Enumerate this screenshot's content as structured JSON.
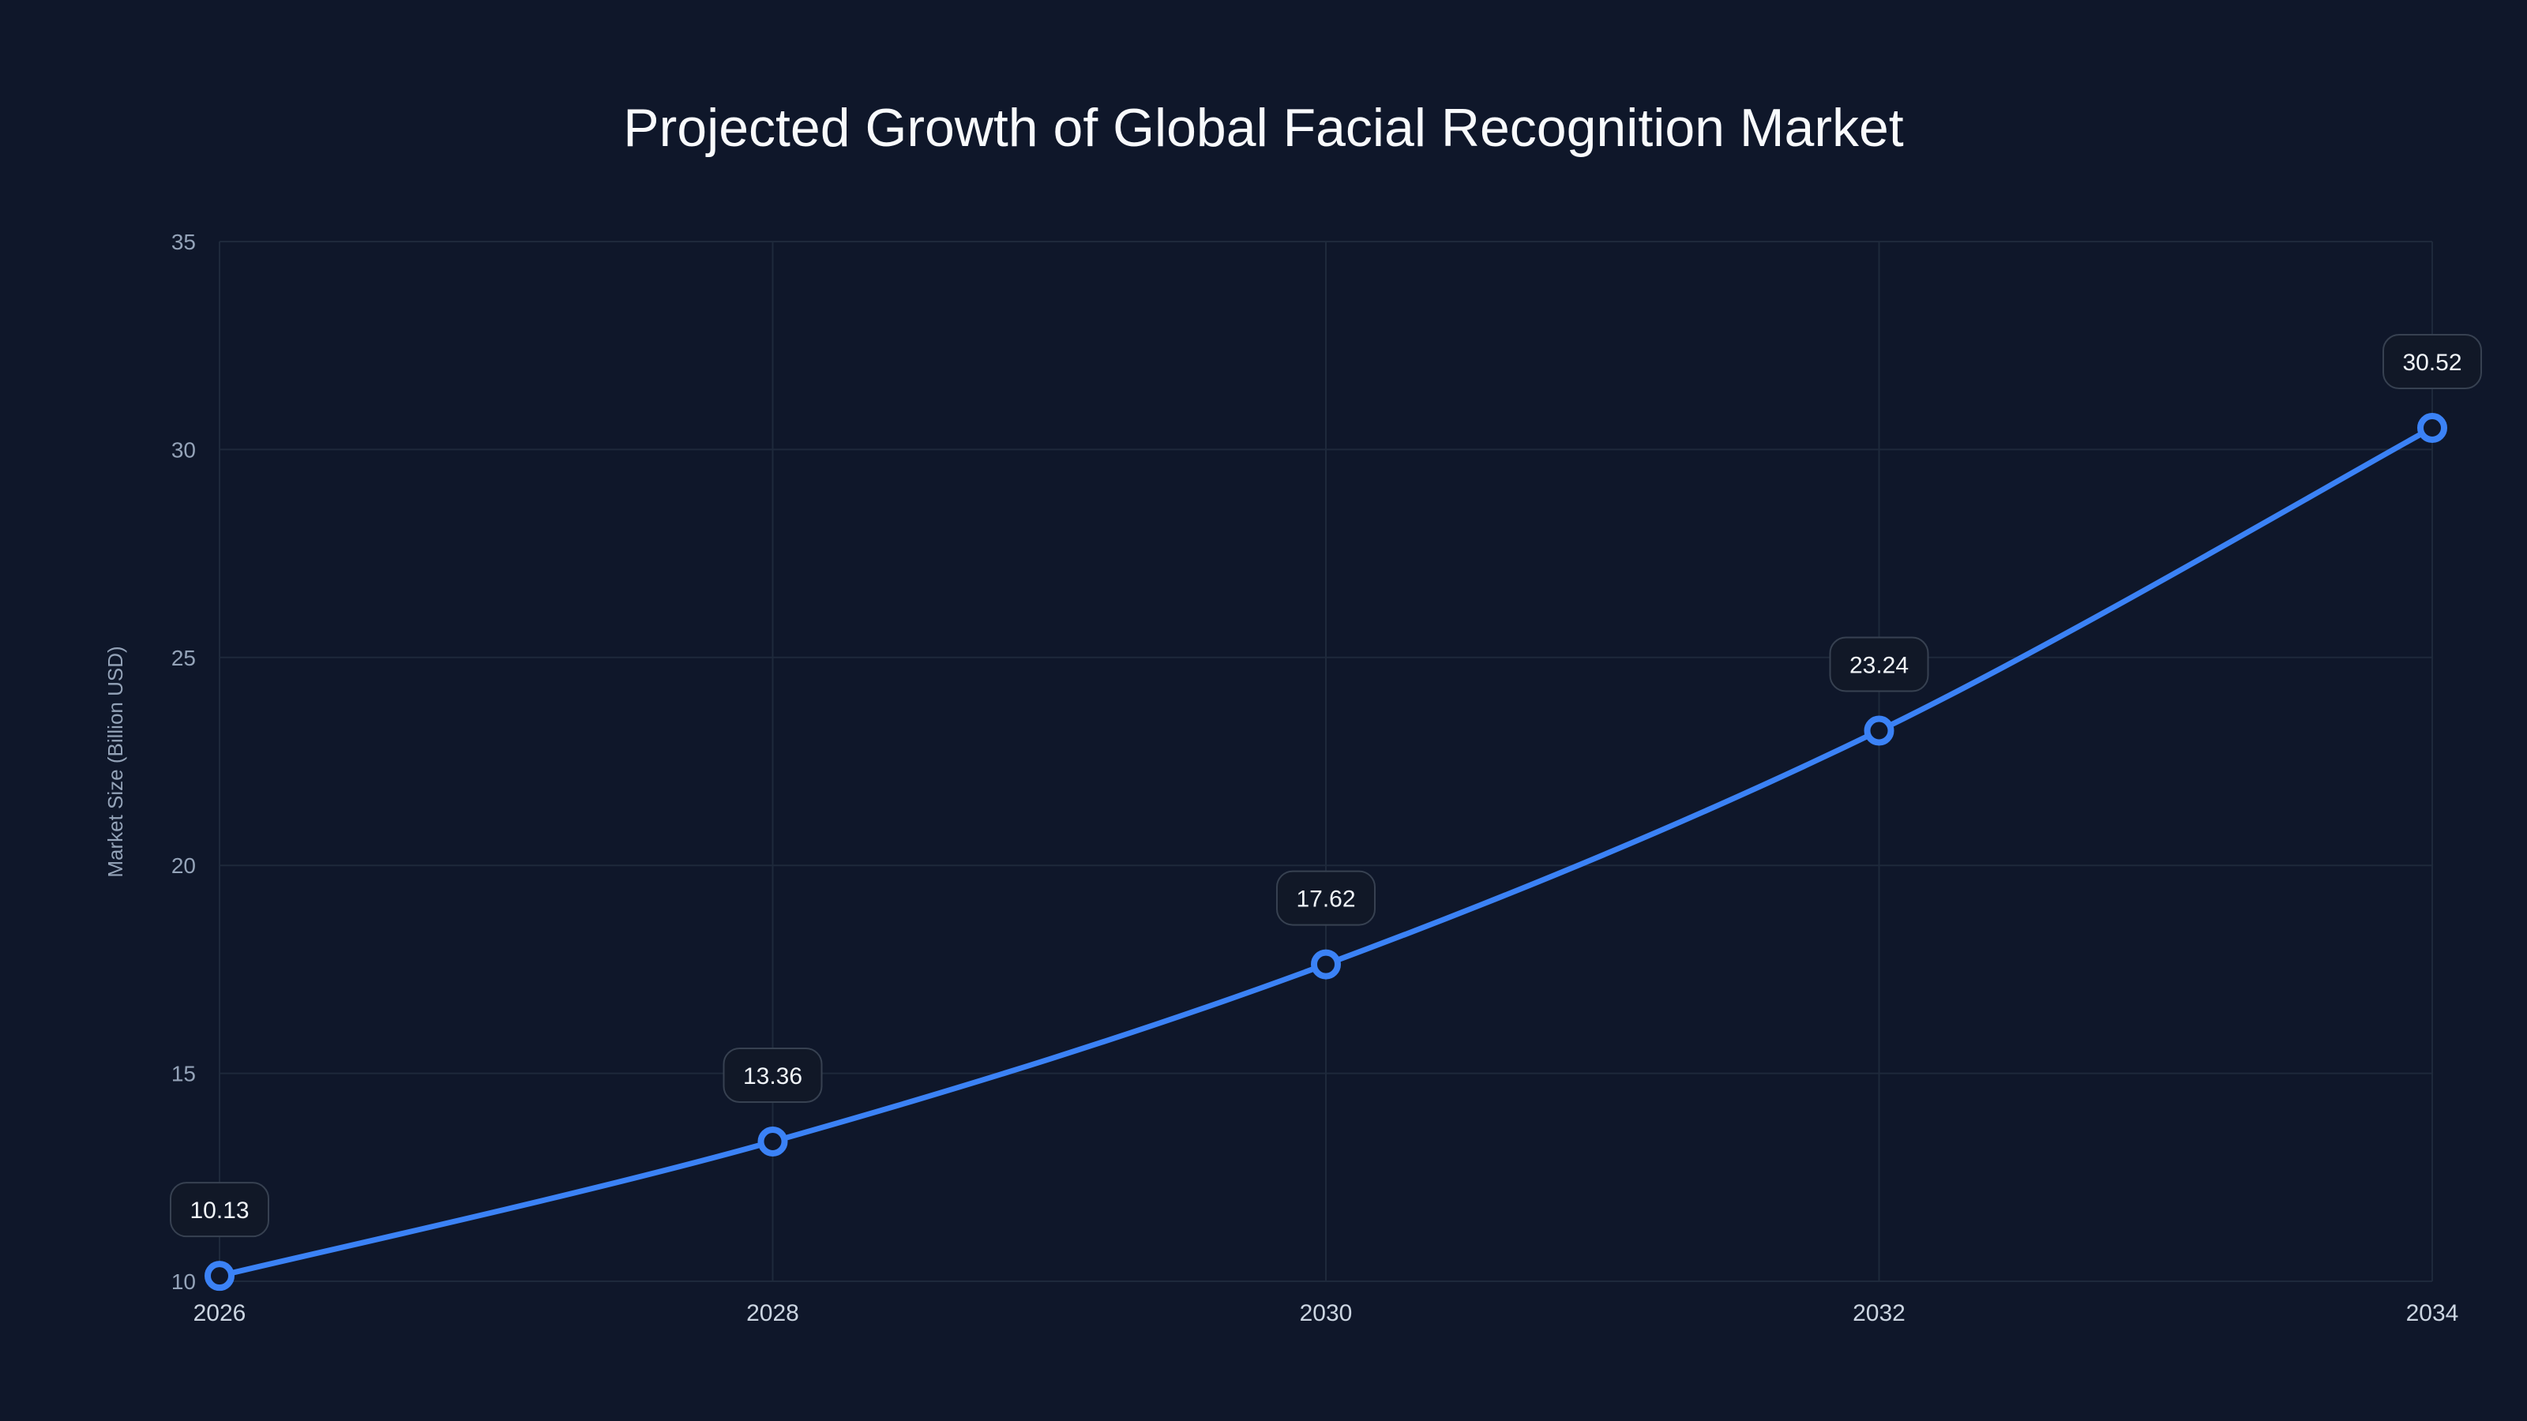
{
  "chart_data": {
    "type": "line",
    "title": "Projected Growth of Global Facial Recognition Market",
    "xlabel": "",
    "ylabel": "Market Size (Billion USD)",
    "x": [
      2026,
      2028,
      2030,
      2032,
      2034
    ],
    "series": [
      {
        "name": "Market Size",
        "values": [
          10.13,
          13.36,
          17.62,
          23.24,
          30.52
        ],
        "color": "#3b82f6"
      }
    ],
    "data_labels": [
      "10.13",
      "13.36",
      "17.62",
      "23.24",
      "30.52"
    ],
    "xlim": [
      2026,
      2034
    ],
    "ylim": [
      10,
      35
    ],
    "yticks": [
      10,
      15,
      20,
      25,
      30,
      35
    ],
    "xticks": [
      2026,
      2028,
      2030,
      2032,
      2034
    ],
    "grid": true,
    "legend": "none"
  },
  "colors": {
    "background": "#0f172a",
    "grid": "#1e293b",
    "line": "#3b82f6",
    "label_box": "#111827",
    "label_border": "#374151"
  }
}
